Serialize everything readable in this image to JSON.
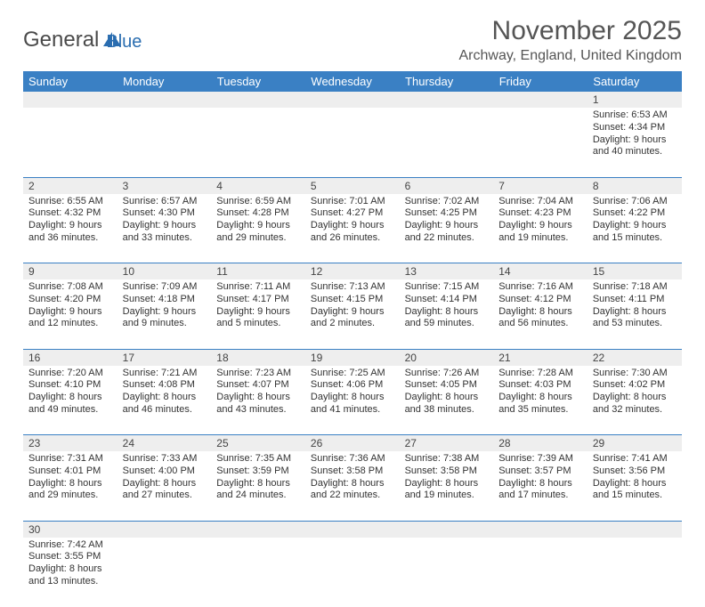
{
  "logo": {
    "text1": "General",
    "text2": "Blue",
    "sail_color": "#2a6db0"
  },
  "title": "November 2025",
  "location": "Archway, England, United Kingdom",
  "day_headers": [
    "Sunday",
    "Monday",
    "Tuesday",
    "Wednesday",
    "Thursday",
    "Friday",
    "Saturday"
  ],
  "colors": {
    "header_bg": "#3a80c4",
    "header_text": "#ffffff",
    "grid_line": "#3a80c4",
    "daynum_bg": "#eeeeee"
  },
  "weeks": [
    [
      null,
      null,
      null,
      null,
      null,
      null,
      {
        "n": "1",
        "sunrise": "Sunrise: 6:53 AM",
        "sunset": "Sunset: 4:34 PM",
        "daylight": "Daylight: 9 hours and 40 minutes."
      }
    ],
    [
      {
        "n": "2",
        "sunrise": "Sunrise: 6:55 AM",
        "sunset": "Sunset: 4:32 PM",
        "daylight": "Daylight: 9 hours and 36 minutes."
      },
      {
        "n": "3",
        "sunrise": "Sunrise: 6:57 AM",
        "sunset": "Sunset: 4:30 PM",
        "daylight": "Daylight: 9 hours and 33 minutes."
      },
      {
        "n": "4",
        "sunrise": "Sunrise: 6:59 AM",
        "sunset": "Sunset: 4:28 PM",
        "daylight": "Daylight: 9 hours and 29 minutes."
      },
      {
        "n": "5",
        "sunrise": "Sunrise: 7:01 AM",
        "sunset": "Sunset: 4:27 PM",
        "daylight": "Daylight: 9 hours and 26 minutes."
      },
      {
        "n": "6",
        "sunrise": "Sunrise: 7:02 AM",
        "sunset": "Sunset: 4:25 PM",
        "daylight": "Daylight: 9 hours and 22 minutes."
      },
      {
        "n": "7",
        "sunrise": "Sunrise: 7:04 AM",
        "sunset": "Sunset: 4:23 PM",
        "daylight": "Daylight: 9 hours and 19 minutes."
      },
      {
        "n": "8",
        "sunrise": "Sunrise: 7:06 AM",
        "sunset": "Sunset: 4:22 PM",
        "daylight": "Daylight: 9 hours and 15 minutes."
      }
    ],
    [
      {
        "n": "9",
        "sunrise": "Sunrise: 7:08 AM",
        "sunset": "Sunset: 4:20 PM",
        "daylight": "Daylight: 9 hours and 12 minutes."
      },
      {
        "n": "10",
        "sunrise": "Sunrise: 7:09 AM",
        "sunset": "Sunset: 4:18 PM",
        "daylight": "Daylight: 9 hours and 9 minutes."
      },
      {
        "n": "11",
        "sunrise": "Sunrise: 7:11 AM",
        "sunset": "Sunset: 4:17 PM",
        "daylight": "Daylight: 9 hours and 5 minutes."
      },
      {
        "n": "12",
        "sunrise": "Sunrise: 7:13 AM",
        "sunset": "Sunset: 4:15 PM",
        "daylight": "Daylight: 9 hours and 2 minutes."
      },
      {
        "n": "13",
        "sunrise": "Sunrise: 7:15 AM",
        "sunset": "Sunset: 4:14 PM",
        "daylight": "Daylight: 8 hours and 59 minutes."
      },
      {
        "n": "14",
        "sunrise": "Sunrise: 7:16 AM",
        "sunset": "Sunset: 4:12 PM",
        "daylight": "Daylight: 8 hours and 56 minutes."
      },
      {
        "n": "15",
        "sunrise": "Sunrise: 7:18 AM",
        "sunset": "Sunset: 4:11 PM",
        "daylight": "Daylight: 8 hours and 53 minutes."
      }
    ],
    [
      {
        "n": "16",
        "sunrise": "Sunrise: 7:20 AM",
        "sunset": "Sunset: 4:10 PM",
        "daylight": "Daylight: 8 hours and 49 minutes."
      },
      {
        "n": "17",
        "sunrise": "Sunrise: 7:21 AM",
        "sunset": "Sunset: 4:08 PM",
        "daylight": "Daylight: 8 hours and 46 minutes."
      },
      {
        "n": "18",
        "sunrise": "Sunrise: 7:23 AM",
        "sunset": "Sunset: 4:07 PM",
        "daylight": "Daylight: 8 hours and 43 minutes."
      },
      {
        "n": "19",
        "sunrise": "Sunrise: 7:25 AM",
        "sunset": "Sunset: 4:06 PM",
        "daylight": "Daylight: 8 hours and 41 minutes."
      },
      {
        "n": "20",
        "sunrise": "Sunrise: 7:26 AM",
        "sunset": "Sunset: 4:05 PM",
        "daylight": "Daylight: 8 hours and 38 minutes."
      },
      {
        "n": "21",
        "sunrise": "Sunrise: 7:28 AM",
        "sunset": "Sunset: 4:03 PM",
        "daylight": "Daylight: 8 hours and 35 minutes."
      },
      {
        "n": "22",
        "sunrise": "Sunrise: 7:30 AM",
        "sunset": "Sunset: 4:02 PM",
        "daylight": "Daylight: 8 hours and 32 minutes."
      }
    ],
    [
      {
        "n": "23",
        "sunrise": "Sunrise: 7:31 AM",
        "sunset": "Sunset: 4:01 PM",
        "daylight": "Daylight: 8 hours and 29 minutes."
      },
      {
        "n": "24",
        "sunrise": "Sunrise: 7:33 AM",
        "sunset": "Sunset: 4:00 PM",
        "daylight": "Daylight: 8 hours and 27 minutes."
      },
      {
        "n": "25",
        "sunrise": "Sunrise: 7:35 AM",
        "sunset": "Sunset: 3:59 PM",
        "daylight": "Daylight: 8 hours and 24 minutes."
      },
      {
        "n": "26",
        "sunrise": "Sunrise: 7:36 AM",
        "sunset": "Sunset: 3:58 PM",
        "daylight": "Daylight: 8 hours and 22 minutes."
      },
      {
        "n": "27",
        "sunrise": "Sunrise: 7:38 AM",
        "sunset": "Sunset: 3:58 PM",
        "daylight": "Daylight: 8 hours and 19 minutes."
      },
      {
        "n": "28",
        "sunrise": "Sunrise: 7:39 AM",
        "sunset": "Sunset: 3:57 PM",
        "daylight": "Daylight: 8 hours and 17 minutes."
      },
      {
        "n": "29",
        "sunrise": "Sunrise: 7:41 AM",
        "sunset": "Sunset: 3:56 PM",
        "daylight": "Daylight: 8 hours and 15 minutes."
      }
    ],
    [
      {
        "n": "30",
        "sunrise": "Sunrise: 7:42 AM",
        "sunset": "Sunset: 3:55 PM",
        "daylight": "Daylight: 8 hours and 13 minutes."
      },
      null,
      null,
      null,
      null,
      null,
      null
    ]
  ]
}
